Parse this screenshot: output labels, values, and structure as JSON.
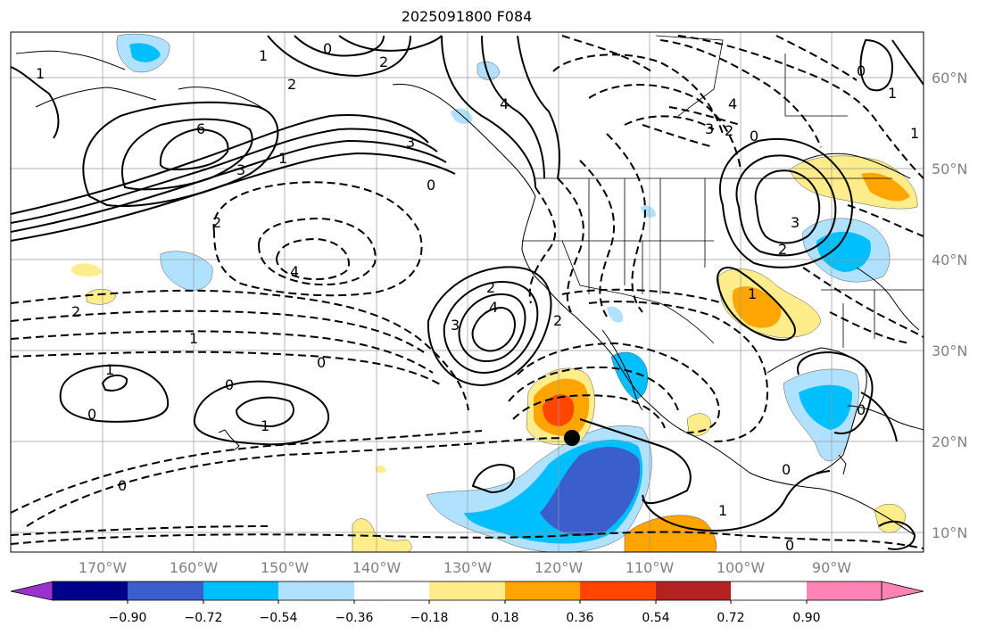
{
  "title": "2025091800 F084",
  "lon_labels": [
    "170°W",
    "160°W",
    "150°W",
    "140°W",
    "130°W",
    "120°W",
    "110°W",
    "100°W",
    "90°W"
  ],
  "lat_labels": [
    "60°N",
    "50°N",
    "40°N",
    "30°N",
    "20°N",
    "10°N"
  ],
  "colorbar": {
    "ticks": [
      "−0.90",
      "−0.72",
      "−0.54",
      "−0.36",
      "−0.18",
      "0.18",
      "0.36",
      "0.54",
      "0.72",
      "0.90"
    ],
    "colors": [
      "#9a32cd",
      "#00008b",
      "#3a5fcd",
      "#00bfff",
      "#b0e2ff",
      "#ffffff",
      "#ffec8b",
      "#ffa500",
      "#ff4500",
      "#b22222",
      "#ff83b4"
    ]
  },
  "contour_labels": [
    "0",
    "1",
    "2",
    "3",
    "4",
    "6",
    "0",
    "1",
    "2",
    "3",
    "4",
    "1",
    "2",
    "4",
    "3",
    "2",
    "0",
    "1",
    "0",
    "1",
    "0",
    "0",
    "1",
    "2",
    "3",
    "4",
    "2",
    "0",
    "1",
    "0",
    "1",
    "2",
    "3",
    "1",
    "0",
    "2",
    "0",
    "1",
    "0"
  ],
  "marker": "storm-center"
}
